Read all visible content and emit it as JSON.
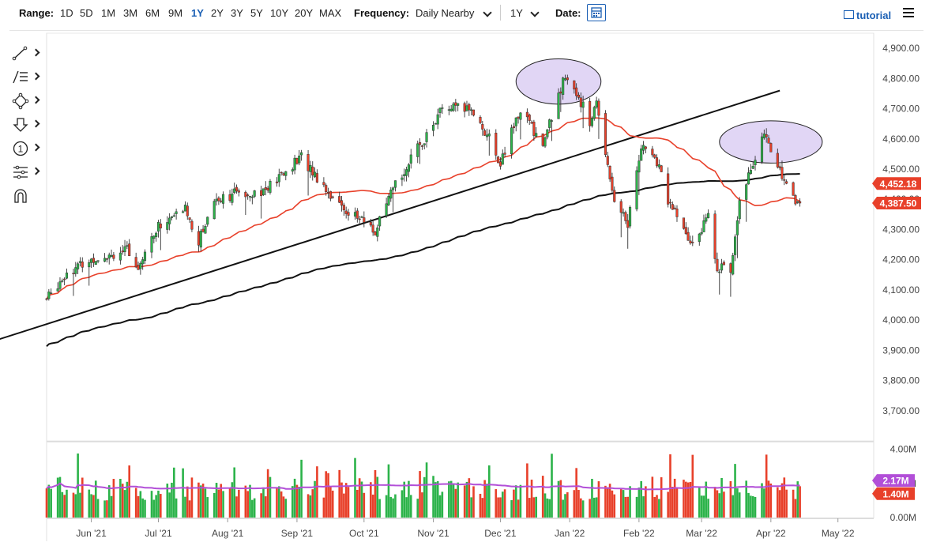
{
  "toolbar": {
    "range_label": "Range:",
    "ranges": [
      "1D",
      "5D",
      "1M",
      "3M",
      "6M",
      "9M",
      "1Y",
      "2Y",
      "3Y",
      "5Y",
      "10Y",
      "20Y",
      "MAX"
    ],
    "active_range": "1Y",
    "frequency_label": "Frequency:",
    "frequency_value": "Daily Nearby",
    "period_value": "1Y",
    "date_label": "Date:",
    "tutorial_label": "tutorial"
  },
  "side_tools": [
    "line-tool-icon",
    "fib-tool-icon",
    "shape-tool-icon",
    "arrow-tool-icon",
    "annotation-tool-icon",
    "settings-tool-icon",
    "magnet-tool-icon"
  ],
  "side_tool_annotation_text": "1",
  "colors": {
    "up": "#2cb34a",
    "down": "#e8402a",
    "ma50": "#e8402a",
    "ma200": "#111111",
    "avgvol": "#b24fd8",
    "ellipse": "#d9ccf3",
    "accent": "#1a5fb4"
  },
  "chart_data": {
    "type": "candlestick",
    "price_axis": {
      "ylim": [
        3600,
        4950
      ],
      "ticks": [
        "4,900.00",
        "4,800.00",
        "4,700.00",
        "4,600.00",
        "4,500.00",
        "4,400.00",
        "4,300.00",
        "4,200.00",
        "4,100.00",
        "4,000.00",
        "3,900.00",
        "3,800.00",
        "3,700.00"
      ],
      "tick_values": [
        4900,
        4800,
        4700,
        4600,
        4500,
        4400,
        4300,
        4200,
        4100,
        4000,
        3900,
        3800,
        3700
      ]
    },
    "volume_axis": {
      "ylim": [
        0,
        4.4
      ],
      "ticks": [
        "4.00M",
        "2.00M",
        "0.00M"
      ],
      "tick_values": [
        4,
        2,
        0
      ]
    },
    "x_labels": [
      "Jun '21",
      "Jul '21",
      "Aug '21",
      "Sep '21",
      "Oct '21",
      "Nov '21",
      "Dec '21",
      "Jan '22",
      "Feb '22",
      "Mar '22",
      "Apr '22",
      "May '22"
    ],
    "x_label_dates": [
      "2021-06-01",
      "2021-07-01",
      "2021-08-01",
      "2021-09-01",
      "2021-10-01",
      "2021-11-01",
      "2021-12-01",
      "2022-01-01",
      "2022-02-01",
      "2022-03-01",
      "2022-04-01",
      "2022-05-01"
    ],
    "x_range": [
      "2021-05-12",
      "2022-05-17"
    ],
    "badges": [
      {
        "label": "4,452.18",
        "value": 4452.18,
        "color": "#e8402a"
      },
      {
        "label": "4,387.50",
        "value": 4387.5,
        "color": "#e8402a"
      }
    ],
    "volume_badges": [
      {
        "label": "2.17M",
        "value": 2.17,
        "color": "#b24fd8"
      },
      {
        "label": "1.40M",
        "value": 1.4,
        "color": "#e8402a"
      }
    ],
    "close_anchors": [
      [
        "2021-05-12",
        4070
      ],
      [
        "2021-05-21",
        4160
      ],
      [
        "2021-06-04",
        4210
      ],
      [
        "2021-06-17",
        4230
      ],
      [
        "2021-06-21",
        4170
      ],
      [
        "2021-07-01",
        4310
      ],
      [
        "2021-07-13",
        4370
      ],
      [
        "2021-07-19",
        4260
      ],
      [
        "2021-07-26",
        4400
      ],
      [
        "2021-08-05",
        4420
      ],
      [
        "2021-08-18",
        4430
      ],
      [
        "2021-08-31",
        4520
      ],
      [
        "2021-09-03",
        4540
      ],
      [
        "2021-09-20",
        4380
      ],
      [
        "2021-10-04",
        4310
      ],
      [
        "2021-10-06",
        4290
      ],
      [
        "2021-10-15",
        4450
      ],
      [
        "2021-11-02",
        4660
      ],
      [
        "2021-11-05",
        4700
      ],
      [
        "2021-11-18",
        4700
      ],
      [
        "2021-11-26",
        4600
      ],
      [
        "2021-12-01",
        4520
      ],
      [
        "2021-12-10",
        4700
      ],
      [
        "2021-12-20",
        4580
      ],
      [
        "2021-12-29",
        4790
      ],
      [
        "2022-01-04",
        4760
      ],
      [
        "2022-01-10",
        4650
      ],
      [
        "2022-01-13",
        4720
      ],
      [
        "2022-01-21",
        4400
      ],
      [
        "2022-01-27",
        4320
      ],
      [
        "2022-02-02",
        4580
      ],
      [
        "2022-02-10",
        4510
      ],
      [
        "2022-02-14",
        4400
      ],
      [
        "2022-02-24",
        4250
      ],
      [
        "2022-03-04",
        4340
      ],
      [
        "2022-03-08",
        4180
      ],
      [
        "2022-03-14",
        4160
      ],
      [
        "2022-03-18",
        4410
      ],
      [
        "2022-03-29",
        4610
      ],
      [
        "2022-04-05",
        4500
      ],
      [
        "2022-04-11",
        4400
      ],
      [
        "2022-04-14",
        4387.5
      ]
    ],
    "volume_range_m": [
      1.0,
      4.0
    ],
    "trendline": {
      "from": [
        "2021-04-01",
        3890
      ],
      "to": [
        "2022-04-05",
        4760
      ]
    },
    "ellipses": [
      {
        "center": [
          "2021-12-27",
          4790
        ],
        "half_width_days": 19,
        "half_height_price": 75
      },
      {
        "center": [
          "2022-04-01",
          4590
        ],
        "half_width_days": 23,
        "half_height_price": 70
      }
    ],
    "indicators": [
      "50-day moving average",
      "200-day moving average",
      "volume average"
    ]
  }
}
